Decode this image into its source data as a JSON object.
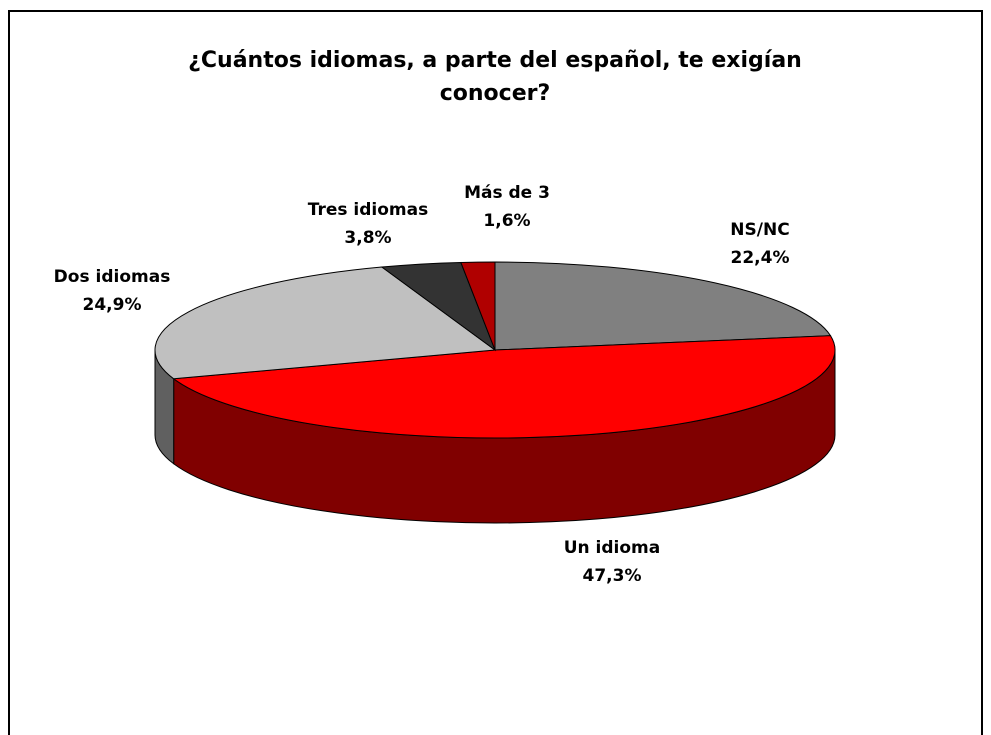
{
  "chart_data": {
    "type": "pie3d",
    "title": "¿Cuántos idiomas, a parte del español, te exigían conocer?",
    "categories": [
      "NS/NC",
      "Un idioma",
      "Dos idiomas",
      "Tres idiomas",
      "Más de 3"
    ],
    "values": [
      22.4,
      47.3,
      24.9,
      3.8,
      1.6
    ],
    "value_labels": [
      "22,4%",
      "47,3%",
      "24,9%",
      "3,8%",
      "1,6%"
    ],
    "colors": [
      "#808080",
      "#ff0000",
      "#c0c0c0",
      "#333333",
      "#b00000"
    ]
  }
}
